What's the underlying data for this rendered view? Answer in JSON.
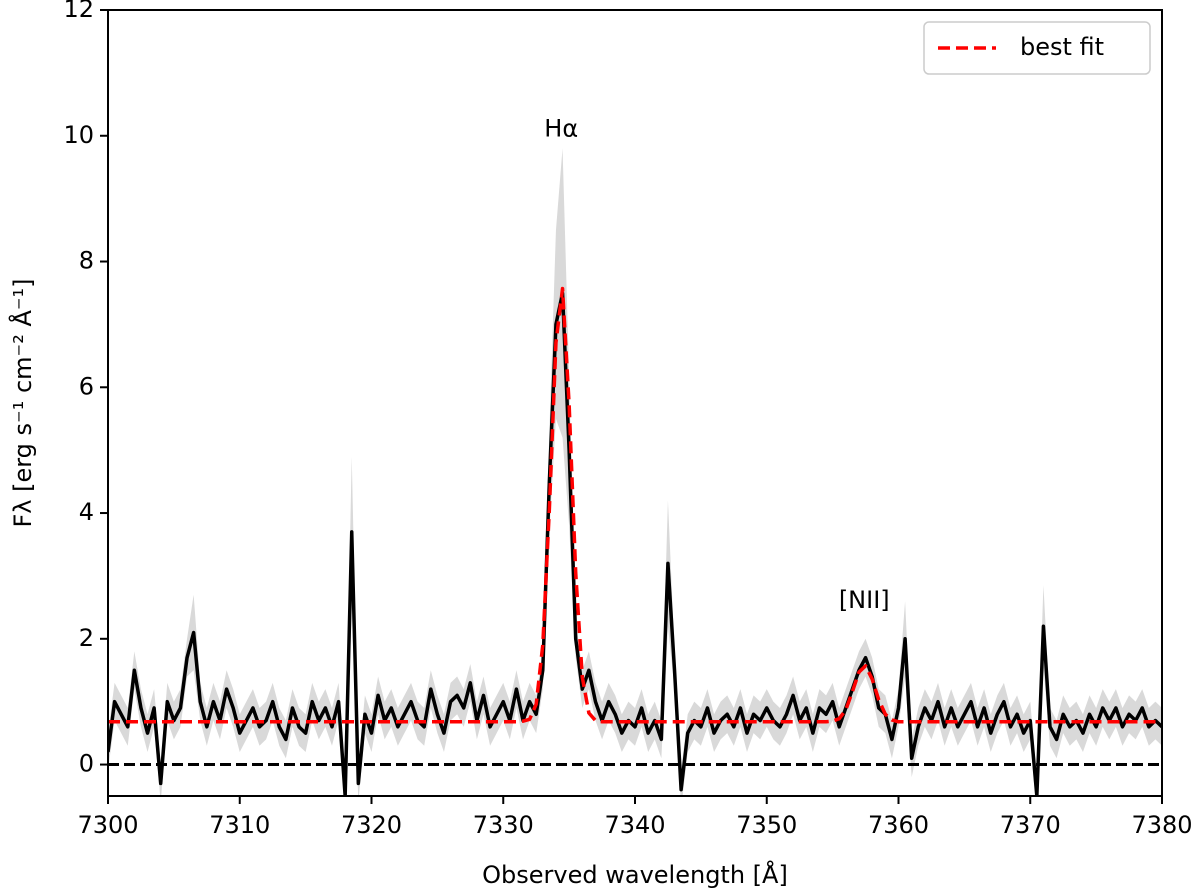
{
  "chart_data": {
    "type": "line",
    "xlabel": "Observed wavelength [Å]",
    "ylabel": "Fλ [erg s⁻¹ cm⁻² Å⁻¹]",
    "xlim": [
      7300,
      7380
    ],
    "ylim": [
      -0.5,
      12
    ],
    "xticks": [
      7300,
      7310,
      7320,
      7330,
      7340,
      7350,
      7360,
      7370,
      7380
    ],
    "yticks": [
      0,
      2,
      4,
      6,
      8,
      10,
      12
    ],
    "reference_line": 0,
    "legend": "upper right",
    "annotations": [
      {
        "text": "Hα",
        "x": 7334.4,
        "y": 10.1
      },
      {
        "text": "[NII]",
        "x": 7357.4,
        "y": 2.6
      }
    ],
    "x": [
      7300,
      7300.5,
      7301,
      7301.5,
      7302,
      7302.5,
      7303,
      7303.5,
      7304,
      7304.5,
      7305,
      7305.5,
      7306,
      7306.5,
      7307,
      7307.5,
      7308,
      7308.5,
      7309,
      7309.5,
      7310,
      7310.5,
      7311,
      7311.5,
      7312,
      7312.5,
      7313,
      7313.5,
      7314,
      7314.5,
      7315,
      7315.5,
      7316,
      7316.5,
      7317,
      7317.5,
      7318,
      7318.5,
      7319,
      7319.5,
      7320,
      7320.5,
      7321,
      7321.5,
      7322,
      7322.5,
      7323,
      7323.5,
      7324,
      7324.5,
      7325,
      7325.5,
      7326,
      7326.5,
      7327,
      7327.5,
      7328,
      7328.5,
      7329,
      7329.5,
      7330,
      7330.5,
      7331,
      7331.5,
      7332,
      7332.5,
      7333,
      7333.5,
      7334,
      7334.5,
      7335,
      7335.5,
      7336,
      7336.5,
      7337,
      7337.5,
      7338,
      7338.5,
      7339,
      7339.5,
      7340,
      7340.5,
      7341,
      7341.5,
      7342,
      7342.5,
      7343,
      7343.5,
      7344,
      7344.5,
      7345,
      7345.5,
      7346,
      7346.5,
      7347,
      7347.5,
      7348,
      7348.5,
      7349,
      7349.5,
      7350,
      7350.5,
      7351,
      7351.5,
      7352,
      7352.5,
      7353,
      7353.5,
      7354,
      7354.5,
      7355,
      7355.5,
      7356,
      7356.5,
      7357,
      7357.5,
      7358,
      7358.5,
      7359,
      7359.5,
      7360,
      7360.5,
      7361,
      7361.5,
      7362,
      7362.5,
      7363,
      7363.5,
      7364,
      7364.5,
      7365,
      7365.5,
      7366,
      7366.5,
      7367,
      7367.5,
      7368,
      7368.5,
      7369,
      7369.5,
      7370,
      7370.5,
      7371,
      7371.5,
      7372,
      7372.5,
      7373,
      7373.5,
      7374,
      7374.5,
      7375,
      7375.5,
      7376,
      7376.5,
      7377,
      7377.5,
      7378,
      7378.5,
      7379,
      7379.5,
      7380
    ],
    "series": [
      {
        "color": "#000000",
        "band_color": "#d9d9d9",
        "values": [
          0.2,
          1.0,
          0.8,
          0.6,
          1.5,
          0.9,
          0.5,
          0.9,
          -0.3,
          1.0,
          0.7,
          0.9,
          1.7,
          2.1,
          1.0,
          0.6,
          1.0,
          0.7,
          1.2,
          0.9,
          0.5,
          0.7,
          0.9,
          0.6,
          0.7,
          1.0,
          0.6,
          0.4,
          0.9,
          0.6,
          0.5,
          1.0,
          0.7,
          0.9,
          0.6,
          1.0,
          -0.5,
          3.7,
          -0.3,
          0.8,
          0.5,
          1.1,
          0.7,
          0.9,
          0.6,
          0.8,
          1.0,
          0.7,
          0.6,
          1.2,
          0.8,
          0.5,
          1.0,
          1.1,
          0.9,
          1.3,
          0.7,
          1.1,
          0.6,
          0.8,
          1.0,
          0.7,
          1.2,
          0.7,
          1.0,
          0.8,
          1.5,
          4.5,
          7.0,
          7.5,
          5.0,
          2.0,
          1.2,
          1.5,
          1.0,
          0.7,
          1.0,
          0.8,
          0.5,
          0.7,
          0.6,
          0.9,
          0.5,
          0.7,
          0.4,
          3.2,
          1.5,
          -0.4,
          0.5,
          0.7,
          0.6,
          0.9,
          0.5,
          0.7,
          0.8,
          0.6,
          0.9,
          0.5,
          0.8,
          0.7,
          0.9,
          0.7,
          0.6,
          0.8,
          1.1,
          0.7,
          0.9,
          0.5,
          0.9,
          0.8,
          1.0,
          0.6,
          0.9,
          1.2,
          1.5,
          1.7,
          1.4,
          0.9,
          0.8,
          0.4,
          0.9,
          2.0,
          0.1,
          0.6,
          0.9,
          0.7,
          1.0,
          0.6,
          0.9,
          0.6,
          0.8,
          1.0,
          0.6,
          0.9,
          0.5,
          0.8,
          1.0,
          0.6,
          0.8,
          0.5,
          0.7,
          -0.5,
          2.2,
          0.6,
          0.4,
          0.8,
          0.6,
          0.7,
          0.5,
          0.8,
          0.6,
          0.9,
          0.7,
          0.9,
          0.6,
          0.8,
          0.7,
          0.9,
          0.6,
          0.7,
          0.6
        ],
        "errors": [
          0.3,
          0.3,
          0.3,
          0.3,
          0.3,
          0.3,
          0.3,
          0.3,
          0.3,
          0.3,
          0.3,
          0.3,
          0.3,
          0.6,
          0.3,
          0.3,
          0.3,
          0.3,
          0.3,
          0.3,
          0.3,
          0.3,
          0.3,
          0.3,
          0.3,
          0.3,
          0.3,
          0.3,
          0.3,
          0.3,
          0.3,
          0.3,
          0.3,
          0.3,
          0.3,
          0.3,
          0.3,
          1.2,
          0.3,
          0.3,
          0.3,
          0.3,
          0.3,
          0.3,
          0.3,
          0.3,
          0.3,
          0.3,
          0.3,
          0.3,
          0.3,
          0.3,
          0.3,
          0.3,
          0.3,
          0.3,
          0.3,
          0.3,
          0.3,
          0.3,
          0.3,
          0.3,
          0.3,
          0.3,
          0.3,
          0.3,
          0.3,
          0.8,
          1.5,
          2.3,
          1.2,
          0.3,
          0.3,
          0.3,
          0.3,
          0.3,
          0.3,
          0.3,
          0.3,
          0.3,
          0.3,
          0.3,
          0.3,
          0.3,
          0.3,
          1.0,
          0.3,
          0.3,
          0.3,
          0.3,
          0.3,
          0.3,
          0.3,
          0.3,
          0.3,
          0.3,
          0.3,
          0.3,
          0.3,
          0.3,
          0.3,
          0.3,
          0.3,
          0.3,
          0.3,
          0.3,
          0.3,
          0.3,
          0.3,
          0.3,
          0.3,
          0.3,
          0.3,
          0.3,
          0.3,
          0.3,
          0.3,
          0.3,
          0.3,
          0.3,
          0.3,
          0.6,
          0.3,
          0.3,
          0.3,
          0.3,
          0.3,
          0.3,
          0.3,
          0.3,
          0.3,
          0.3,
          0.3,
          0.3,
          0.3,
          0.3,
          0.3,
          0.3,
          0.3,
          0.3,
          0.3,
          0.3,
          0.65,
          0.3,
          0.3,
          0.3,
          0.3,
          0.3,
          0.3,
          0.3,
          0.3,
          0.3,
          0.3,
          0.3,
          0.3,
          0.3,
          0.3,
          0.3,
          0.3,
          0.3,
          0.3
        ]
      },
      {
        "name": "best fit",
        "color": "#ff0000",
        "dashed": true,
        "values": [
          0.68,
          0.68,
          0.68,
          0.68,
          0.68,
          0.68,
          0.68,
          0.68,
          0.68,
          0.68,
          0.68,
          0.68,
          0.68,
          0.68,
          0.68,
          0.68,
          0.68,
          0.68,
          0.68,
          0.68,
          0.68,
          0.68,
          0.68,
          0.68,
          0.68,
          0.68,
          0.68,
          0.68,
          0.68,
          0.68,
          0.68,
          0.68,
          0.68,
          0.68,
          0.68,
          0.68,
          0.68,
          0.68,
          0.68,
          0.68,
          0.68,
          0.68,
          0.68,
          0.68,
          0.68,
          0.68,
          0.68,
          0.68,
          0.68,
          0.68,
          0.68,
          0.68,
          0.68,
          0.68,
          0.68,
          0.68,
          0.68,
          0.68,
          0.68,
          0.68,
          0.68,
          0.68,
          0.68,
          0.69,
          0.72,
          0.96,
          1.9,
          4.06,
          6.71,
          7.57,
          5.73,
          3.05,
          1.39,
          0.82,
          0.7,
          0.68,
          0.68,
          0.68,
          0.68,
          0.68,
          0.68,
          0.68,
          0.68,
          0.68,
          0.68,
          0.68,
          0.68,
          0.68,
          0.68,
          0.68,
          0.68,
          0.68,
          0.68,
          0.68,
          0.68,
          0.68,
          0.68,
          0.68,
          0.68,
          0.68,
          0.68,
          0.68,
          0.68,
          0.68,
          0.68,
          0.68,
          0.68,
          0.68,
          0.68,
          0.68,
          0.69,
          0.73,
          0.87,
          1.16,
          1.47,
          1.57,
          1.36,
          1.03,
          0.8,
          0.71,
          0.68,
          0.68,
          0.68,
          0.68,
          0.68,
          0.68,
          0.68,
          0.68,
          0.68,
          0.68,
          0.68,
          0.68,
          0.68,
          0.68,
          0.68,
          0.68,
          0.68,
          0.68,
          0.68,
          0.68,
          0.68,
          0.68,
          0.68,
          0.68,
          0.68,
          0.68,
          0.68,
          0.68,
          0.68,
          0.68,
          0.68,
          0.68,
          0.68,
          0.68,
          0.68,
          0.68,
          0.68,
          0.68,
          0.68,
          0.68,
          0.68
        ]
      }
    ]
  }
}
